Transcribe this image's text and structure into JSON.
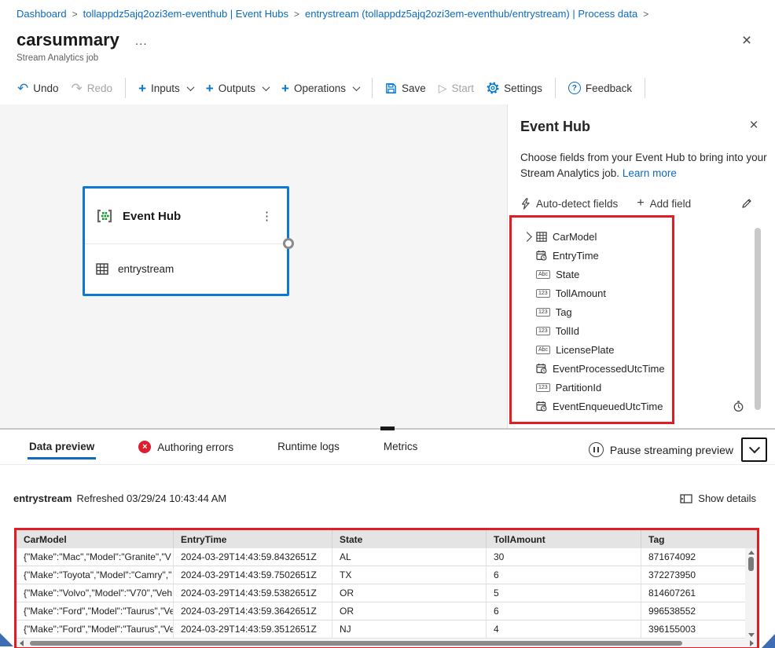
{
  "breadcrumb": {
    "items": [
      "Dashboard",
      "tollappdz5ajq2ozi3em-eventhub | Event Hubs",
      "entrystream (tollappdz5ajq2ozi3em-eventhub/entrystream) | Process data"
    ]
  },
  "header": {
    "title": "carsummary",
    "more": "...",
    "subtitle": "Stream Analytics job",
    "close": "×"
  },
  "toolbar": {
    "undo": "Undo",
    "redo": "Redo",
    "inputs": "Inputs",
    "outputs": "Outputs",
    "operations": "Operations",
    "save": "Save",
    "start": "Start",
    "settings": "Settings",
    "feedback": "Feedback"
  },
  "canvas": {
    "node": {
      "title": "Event Hub",
      "kebab": "⋮",
      "input_name": "entrystream"
    }
  },
  "panel": {
    "title": "Event Hub",
    "close": "×",
    "description": "Choose fields from your Event Hub to bring into your Stream Analytics job.",
    "learn_more": "Learn more",
    "auto_detect": "Auto-detect fields",
    "add_field": "Add field",
    "fields": [
      {
        "name": "CarModel",
        "type": "record",
        "expandable": true
      },
      {
        "name": "EntryTime",
        "type": "datetime"
      },
      {
        "name": "State",
        "type": "string"
      },
      {
        "name": "TollAmount",
        "type": "number"
      },
      {
        "name": "Tag",
        "type": "number"
      },
      {
        "name": "TollId",
        "type": "number"
      },
      {
        "name": "LicensePlate",
        "type": "string"
      },
      {
        "name": "EventProcessedUtcTime",
        "type": "datetime"
      },
      {
        "name": "PartitionId",
        "type": "number"
      },
      {
        "name": "EventEnqueuedUtcTime",
        "type": "datetime"
      }
    ],
    "type_glyphs": {
      "string": "Abc",
      "number": "123"
    }
  },
  "tabs": {
    "items": [
      "Data preview",
      "Authoring errors",
      "Runtime logs",
      "Metrics"
    ],
    "active_index": 0,
    "error_tab_index": 1,
    "error_glyph": "×",
    "pause_label": "Pause streaming preview"
  },
  "preview": {
    "stream_name": "entrystream",
    "refreshed": "Refreshed 03/29/24 10:43:44 AM",
    "show_details": "Show details"
  },
  "table": {
    "columns": [
      "CarModel",
      "EntryTime",
      "State",
      "TollAmount",
      "Tag"
    ],
    "rows": [
      [
        "{\"Make\":\"Mac\",\"Model\":\"Granite\",\"V",
        "2024-03-29T14:43:59.8432651Z",
        "AL",
        "30",
        "871674092"
      ],
      [
        "{\"Make\":\"Toyota\",\"Model\":\"Camry\",\"",
        "2024-03-29T14:43:59.7502651Z",
        "TX",
        "6",
        "372273950"
      ],
      [
        "{\"Make\":\"Volvo\",\"Model\":\"V70\",\"Veh",
        "2024-03-29T14:43:59.5382651Z",
        "OR",
        "5",
        "814607261"
      ],
      [
        "{\"Make\":\"Ford\",\"Model\":\"Taurus\",\"Ve",
        "2024-03-29T14:43:59.3642651Z",
        "OR",
        "6",
        "996538552"
      ],
      [
        "{\"Make\":\"Ford\",\"Model\":\"Taurus\",\"Ve",
        "2024-03-29T14:43:59.3512651Z",
        "NJ",
        "4",
        "396155003"
      ]
    ]
  },
  "colors": {
    "accent": "#0078d4",
    "annotation_red": "#e11c22",
    "error_badge": "#df1e2e",
    "node_border": "#0a78d4"
  }
}
